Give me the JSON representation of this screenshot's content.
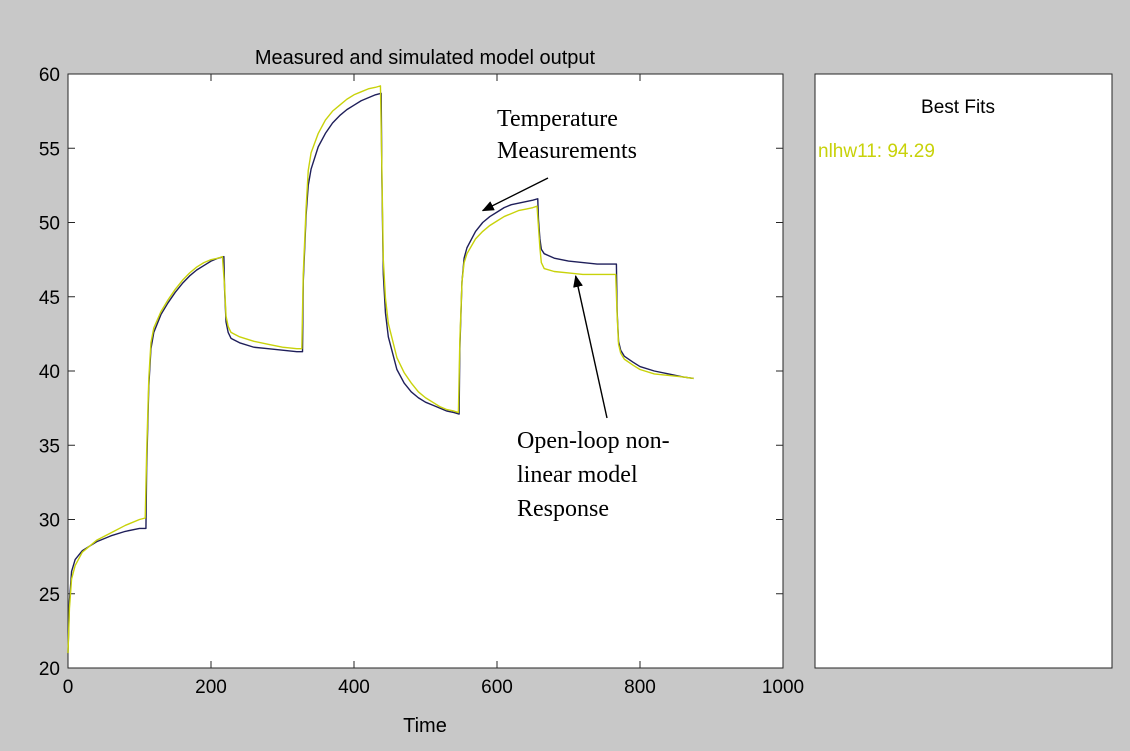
{
  "colors": {
    "figure_bg": "#c8c8c8",
    "measured": "#1f1f5a",
    "simulated": "#c8d20a"
  },
  "chart_data": {
    "type": "line",
    "title": "Measured and simulated model output",
    "xlabel": "Time",
    "ylabel": "",
    "xlim": [
      0,
      1000
    ],
    "ylim": [
      20,
      60
    ],
    "xticks": [
      "0",
      "200",
      "400",
      "600",
      "800",
      "1000"
    ],
    "yticks": [
      "20",
      "25",
      "30",
      "35",
      "40",
      "45",
      "50",
      "55",
      "60"
    ],
    "grid": false,
    "series": [
      {
        "color": "#1f1f5a",
        "x": [
          0,
          2,
          5,
          10,
          20,
          40,
          60,
          80,
          100,
          109,
          110,
          113,
          116,
          120,
          130,
          140,
          150,
          160,
          170,
          180,
          190,
          200,
          210,
          218,
          219,
          221,
          224,
          228,
          240,
          260,
          280,
          300,
          320,
          328,
          329,
          333,
          336,
          340,
          350,
          360,
          370,
          380,
          390,
          400,
          410,
          420,
          430,
          438,
          439,
          441,
          444,
          448,
          460,
          470,
          480,
          490,
          500,
          510,
          520,
          530,
          540,
          547,
          548,
          551,
          554,
          558,
          570,
          580,
          590,
          600,
          610,
          620,
          630,
          640,
          650,
          657,
          658,
          660,
          662,
          666,
          680,
          700,
          720,
          740,
          760,
          767,
          768,
          770,
          773,
          778,
          790,
          800,
          820,
          840,
          860,
          875
        ],
        "y": [
          21.0,
          24.5,
          26.5,
          27.3,
          27.9,
          28.5,
          28.9,
          29.2,
          29.4,
          29.4,
          33.5,
          39.0,
          41.5,
          42.6,
          43.8,
          44.6,
          45.3,
          45.9,
          46.4,
          46.8,
          47.1,
          47.4,
          47.6,
          47.7,
          45.5,
          43.3,
          42.6,
          42.2,
          41.9,
          41.6,
          41.5,
          41.4,
          41.3,
          41.3,
          46.0,
          50.5,
          52.5,
          53.6,
          55.1,
          56.0,
          56.7,
          57.2,
          57.6,
          57.9,
          58.2,
          58.4,
          58.6,
          58.7,
          53.0,
          46.5,
          43.9,
          42.3,
          40.1,
          39.2,
          38.6,
          38.2,
          37.9,
          37.7,
          37.5,
          37.3,
          37.2,
          37.1,
          41.5,
          46.0,
          47.6,
          48.3,
          49.4,
          50.0,
          50.4,
          50.7,
          51.0,
          51.2,
          51.3,
          51.4,
          51.5,
          51.6,
          50.2,
          48.9,
          48.2,
          47.9,
          47.6,
          47.4,
          47.3,
          47.2,
          47.2,
          47.2,
          44.0,
          42.0,
          41.4,
          41.0,
          40.6,
          40.3,
          40.0,
          39.8,
          39.6,
          39.5
        ]
      },
      {
        "color": "#c8d20a",
        "x": [
          0,
          2,
          5,
          10,
          20,
          40,
          60,
          80,
          100,
          108,
          110,
          113,
          116,
          120,
          130,
          140,
          150,
          160,
          170,
          180,
          190,
          200,
          210,
          216,
          219,
          221,
          224,
          228,
          240,
          260,
          280,
          300,
          320,
          327,
          329,
          333,
          336,
          340,
          350,
          360,
          370,
          380,
          390,
          400,
          410,
          420,
          430,
          437,
          439,
          441,
          444,
          448,
          460,
          470,
          480,
          490,
          500,
          510,
          520,
          530,
          540,
          546,
          548,
          551,
          554,
          558,
          570,
          580,
          590,
          600,
          610,
          620,
          630,
          640,
          650,
          656,
          658,
          660,
          662,
          666,
          680,
          700,
          720,
          740,
          760,
          766,
          768,
          770,
          773,
          778,
          790,
          800,
          820,
          840,
          860,
          875
        ],
        "y": [
          21.0,
          24.0,
          26.0,
          26.9,
          27.8,
          28.6,
          29.1,
          29.6,
          30.0,
          30.1,
          34.5,
          39.5,
          41.9,
          42.9,
          44.0,
          44.8,
          45.5,
          46.1,
          46.6,
          47.0,
          47.3,
          47.5,
          47.6,
          47.7,
          45.7,
          43.7,
          43.0,
          42.6,
          42.3,
          42.0,
          41.8,
          41.6,
          41.5,
          41.5,
          46.5,
          51.0,
          53.5,
          54.7,
          56.0,
          56.9,
          57.5,
          57.9,
          58.3,
          58.6,
          58.8,
          59.0,
          59.1,
          59.2,
          53.5,
          47.5,
          44.9,
          43.2,
          40.9,
          39.9,
          39.2,
          38.6,
          38.2,
          37.9,
          37.6,
          37.4,
          37.3,
          37.2,
          42.0,
          46.0,
          47.3,
          47.9,
          48.9,
          49.4,
          49.8,
          50.1,
          50.4,
          50.6,
          50.8,
          50.9,
          51.0,
          51.1,
          49.7,
          48.3,
          47.3,
          46.9,
          46.7,
          46.6,
          46.5,
          46.5,
          46.5,
          46.5,
          43.8,
          41.8,
          41.2,
          40.8,
          40.4,
          40.1,
          39.8,
          39.7,
          39.6,
          39.5
        ]
      }
    ],
    "annotations": [
      {
        "lines": [
          "Temperature",
          "Measurements"
        ],
        "point": [
          580,
          50.8
        ]
      },
      {
        "lines": [
          "Open-loop non-",
          "linear model",
          "Response"
        ],
        "point": [
          710,
          46.4
        ]
      }
    ]
  },
  "best_fits": {
    "title": "Best Fits",
    "entries": [
      {
        "text": "nlhw11: 94.29",
        "color": "#c8d20a"
      }
    ]
  }
}
